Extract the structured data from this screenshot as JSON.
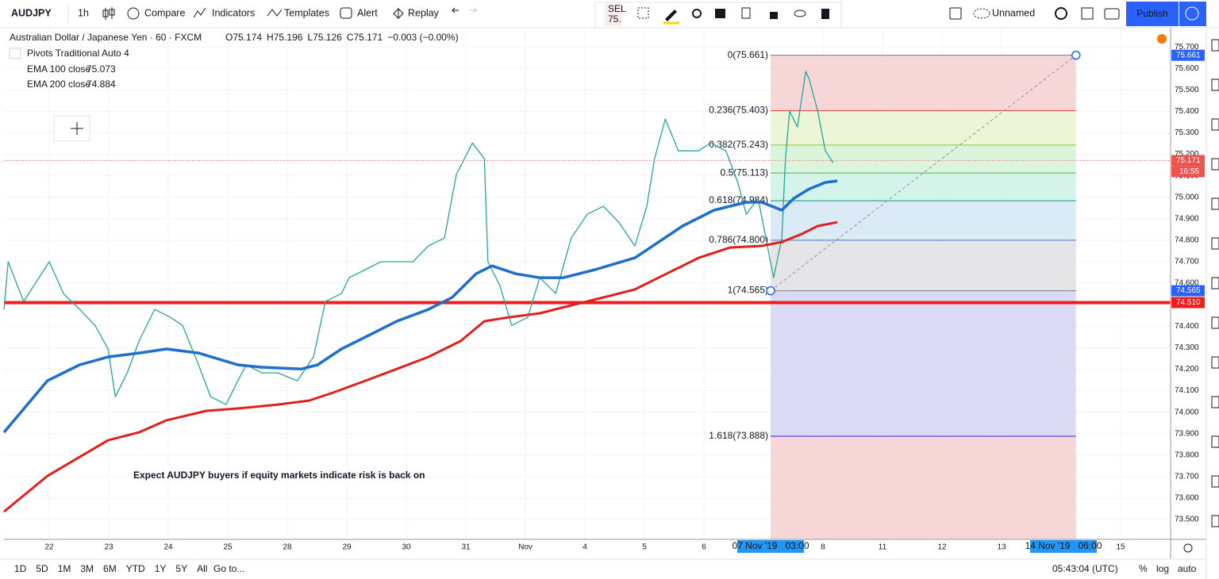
{
  "toolbar": {
    "symbol": "AUDJPY",
    "interval": "1h",
    "compare": "Compare",
    "indicators": "Indicators",
    "templates": "Templates",
    "alert": "Alert",
    "replay": "Replay",
    "sell": "SEL",
    "sell_price": "75.",
    "layout": "Unnamed",
    "publish": "Publish"
  },
  "chart_data": {
    "type": "line",
    "title": "Australian Dollar / Japanese Yen · 60 · FXCM",
    "ohlc": [
      "O75.174",
      "H75.196",
      "L75.126",
      "C75.171",
      "−0.003 (−0.00%)"
    ],
    "indicators": [
      "Pivots Traditional Auto 4"
    ],
    "annotation": "Expect AUDJPY buyers if equity markets indicate risk is back on",
    "xlim": [
      -0.76,
      18.84
    ],
    "ylim": [
      73.408,
      75.789
    ],
    "grid": true,
    "xticks": [
      {
        "value": 0,
        "label": "22"
      },
      {
        "value": 1,
        "label": "23"
      },
      {
        "value": 2,
        "label": "24"
      },
      {
        "value": 3,
        "label": "25"
      },
      {
        "value": 4,
        "label": "28"
      },
      {
        "value": 5,
        "label": "29"
      },
      {
        "value": 6,
        "label": "30"
      },
      {
        "value": 7,
        "label": "31"
      },
      {
        "value": 8,
        "label": "Nov"
      },
      {
        "value": 9,
        "label": "4"
      },
      {
        "value": 10,
        "label": "5"
      },
      {
        "value": 11,
        "label": "6"
      },
      {
        "value": 13,
        "label": "8"
      },
      {
        "value": 14,
        "label": "11"
      },
      {
        "value": 15,
        "label": "12"
      },
      {
        "value": 16,
        "label": "13"
      },
      {
        "value": 18,
        "label": "15"
      }
    ],
    "x_markers": [
      {
        "value": 12.12,
        "label": "07 Nov '19   03:00"
      },
      {
        "value": 17.04,
        "label": "14 Nov '19   06:00"
      }
    ],
    "yticks": [
      {
        "value": 73.5,
        "label": "73.500"
      },
      {
        "value": 73.6,
        "label": "73.600"
      },
      {
        "value": 73.7,
        "label": "73.700"
      },
      {
        "value": 73.8,
        "label": "73.800"
      },
      {
        "value": 73.9,
        "label": "73.900"
      },
      {
        "value": 74.0,
        "label": "74.000"
      },
      {
        "value": 74.1,
        "label": "74.100"
      },
      {
        "value": 74.2,
        "label": "74.200"
      },
      {
        "value": 74.3,
        "label": "74.300"
      },
      {
        "value": 74.4,
        "label": "74.400"
      },
      {
        "value": 74.5,
        "label": "74.500"
      },
      {
        "value": 74.6,
        "label": "74.600"
      },
      {
        "value": 74.7,
        "label": "74.700"
      },
      {
        "value": 74.8,
        "label": "74.800"
      },
      {
        "value": 74.9,
        "label": "74.900"
      },
      {
        "value": 75.0,
        "label": "75.000"
      },
      {
        "value": 75.1,
        "label": "75.100"
      },
      {
        "value": 75.2,
        "label": "75.200"
      },
      {
        "value": 75.3,
        "label": "75.300"
      },
      {
        "value": 75.4,
        "label": "75.400"
      },
      {
        "value": 75.5,
        "label": "75.500"
      },
      {
        "value": 75.6,
        "label": "75.600"
      },
      {
        "value": 75.7,
        "label": "75.700"
      }
    ],
    "fib": {
      "x": [
        12.12,
        17.25
      ],
      "levels": [
        {
          "value": 75.661,
          "label": "0(75.661)",
          "color": "#787b86",
          "fill": "#f4cfcf"
        },
        {
          "value": 75.403,
          "label": "0.236(75.403)",
          "color": "#e53935",
          "fill": "#e9f5cf"
        },
        {
          "value": 75.243,
          "label": "0.382(75.243)",
          "color": "#9bbf3a",
          "fill": "#d5f2d6"
        },
        {
          "value": 75.113,
          "label": "0.5(75.113)",
          "color": "#4caf50",
          "fill": "#cdf1e6"
        },
        {
          "value": 74.984,
          "label": "0.618(74.984)",
          "color": "#089981",
          "fill": "#d3e6f5"
        },
        {
          "value": 74.8,
          "label": "0.786(74.800)",
          "color": "#4a78c0",
          "fill": "#e1e1e3"
        },
        {
          "value": 74.565,
          "label": "1(74.565)",
          "color": "#787b86",
          "fill": "#d3d3f3"
        },
        {
          "value": 73.888,
          "label": "1.618(73.888)",
          "color": "#2a2adf",
          "fill": "#f4cfcf"
        }
      ]
    },
    "trend_line": {
      "x": [
        12.12,
        17.25
      ],
      "values": [
        74.565,
        75.661
      ],
      "color": "#9598a1"
    },
    "hlines": [
      {
        "value": 74.51,
        "color": "#f21c1c"
      }
    ],
    "price_labels": [
      {
        "value": 75.661,
        "label": "75.661",
        "color": "#2962ff"
      },
      {
        "value": 75.171,
        "label": "75.171",
        "color": "#ef5350",
        "time": "16:55"
      },
      {
        "value": 74.565,
        "label": "74.565",
        "color": "#2962ff"
      },
      {
        "value": 74.51,
        "label": "74.510",
        "color": "#f21c1c"
      }
    ],
    "last_price": 75.171,
    "series": [
      {
        "name": "AUDJPY",
        "color": "#26a69a",
        "width": 1.3,
        "x": [
          -0.76,
          -0.69,
          -0.43,
          0,
          0.24,
          0.51,
          0.77,
          0.99,
          1.11,
          1.31,
          1.51,
          1.77,
          2.04,
          2.24,
          2.51,
          2.71,
          2.97,
          3.17,
          3.31,
          3.57,
          3.84,
          4.17,
          4.44,
          4.64,
          4.91,
          5.04,
          5.31,
          5.57,
          5.84,
          6.11,
          6.37,
          6.64,
          6.84,
          7.11,
          7.31,
          7.37,
          7.57,
          7.77,
          8.04,
          8.24,
          8.51,
          8.77,
          9.04,
          9.31,
          9.57,
          9.84,
          10.04,
          10.17,
          10.35,
          10.57,
          10.91,
          11.11,
          11.37,
          11.57,
          11.71,
          11.91,
          12.04,
          12.17,
          12.31,
          12.37,
          12.44,
          12.57,
          12.71,
          12.77,
          12.91,
          13.04,
          13.17
        ],
        "values": [
          74.478,
          74.7,
          74.515,
          74.7,
          74.552,
          74.478,
          74.404,
          74.294,
          74.072,
          74.183,
          74.331,
          74.478,
          74.441,
          74.404,
          74.22,
          74.072,
          74.035,
          74.146,
          74.22,
          74.183,
          74.183,
          74.146,
          74.257,
          74.515,
          74.552,
          74.626,
          74.663,
          74.7,
          74.7,
          74.7,
          74.774,
          74.81,
          75.106,
          75.253,
          75.18,
          74.7,
          74.589,
          74.404,
          74.441,
          74.626,
          74.552,
          74.81,
          74.921,
          74.958,
          74.884,
          74.774,
          74.958,
          75.18,
          75.364,
          75.216,
          75.216,
          75.253,
          75.216,
          75.069,
          74.921,
          74.995,
          74.81,
          74.626,
          74.81,
          75.18,
          75.401,
          75.327,
          75.586,
          75.549,
          75.401,
          75.216,
          75.161
        ]
      },
      {
        "name": "EMA 100 close",
        "legend_value": "75.073",
        "color": "#1e6fc9",
        "width": 3.5,
        "x": [
          -0.76,
          -0.03,
          0.51,
          0.99,
          1.51,
          1.97,
          2.51,
          3.17,
          3.57,
          4.24,
          4.51,
          4.91,
          5.31,
          5.84,
          6.37,
          6.77,
          7.17,
          7.44,
          7.84,
          8.24,
          8.64,
          9.17,
          9.84,
          10.24,
          10.64,
          11.17,
          11.71,
          11.97,
          12.31,
          12.51,
          12.77,
          13.04,
          13.24
        ],
        "values": [
          73.906,
          74.146,
          74.22,
          74.257,
          74.275,
          74.294,
          74.275,
          74.22,
          74.209,
          74.201,
          74.22,
          74.294,
          74.349,
          74.423,
          74.478,
          74.534,
          74.644,
          74.681,
          74.644,
          74.626,
          74.626,
          74.663,
          74.718,
          74.792,
          74.866,
          74.94,
          74.977,
          74.977,
          74.94,
          74.995,
          75.039,
          75.069,
          75.076
        ]
      },
      {
        "name": "EMA 200 close",
        "legend_value": "74.884",
        "color": "#e0201b",
        "width": 3,
        "x": [
          -0.76,
          -0.03,
          0.99,
          1.51,
          1.97,
          2.64,
          3.17,
          3.84,
          4.37,
          4.77,
          5.31,
          5.84,
          6.37,
          6.91,
          7.31,
          7.71,
          8.24,
          8.77,
          9.31,
          9.84,
          10.37,
          10.91,
          11.44,
          11.97,
          12.31,
          12.64,
          12.91,
          13.24
        ],
        "values": [
          73.537,
          73.703,
          73.869,
          73.906,
          73.962,
          74.006,
          74.017,
          74.035,
          74.054,
          74.091,
          74.146,
          74.201,
          74.257,
          74.331,
          74.423,
          74.441,
          74.46,
          74.497,
          74.534,
          74.571,
          74.644,
          74.718,
          74.766,
          74.774,
          74.792,
          74.829,
          74.866,
          74.884
        ]
      }
    ]
  },
  "footer": {
    "ranges": [
      "1D",
      "5D",
      "1M",
      "3M",
      "6M",
      "YTD",
      "1Y",
      "5Y",
      "All"
    ],
    "goto": "Go to...",
    "time": "05:43:04 (UTC)",
    "percent": "%",
    "log": "log",
    "auto": "auto"
  }
}
